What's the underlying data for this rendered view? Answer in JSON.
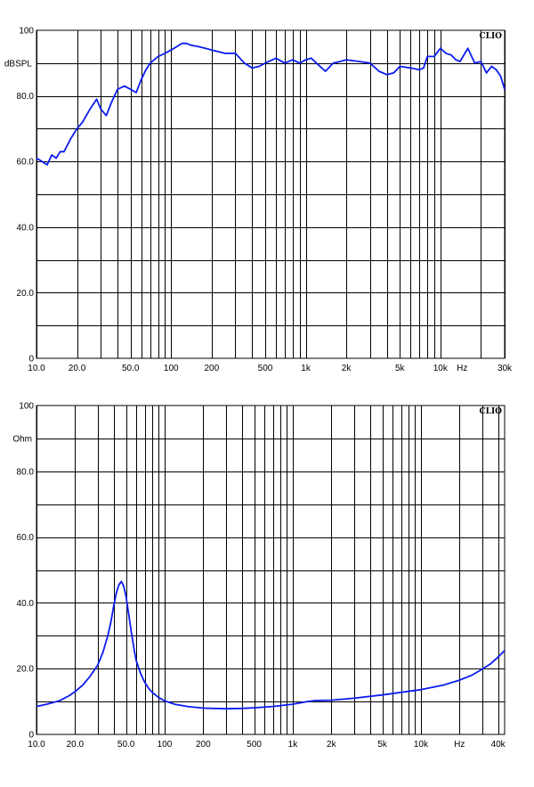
{
  "chart_data": [
    {
      "type": "line",
      "brand": "CLIO",
      "ylabel": "dBSPL",
      "ylim": [
        0,
        100
      ],
      "xlim": [
        10,
        30000
      ],
      "x_scale": "log",
      "grid": true,
      "series_color": "#0a1cf0",
      "y_tick_labels": [
        {
          "value": 0,
          "label": "0"
        },
        {
          "value": 20,
          "label": "20.0"
        },
        {
          "value": 40,
          "label": "40.0"
        },
        {
          "value": 60,
          "label": "60.0"
        },
        {
          "value": 80,
          "label": "80.0"
        },
        {
          "value": 100,
          "label": "100"
        }
      ],
      "x_tick_labels": [
        {
          "value": 10,
          "label": "10.0"
        },
        {
          "value": 20,
          "label": "20.0"
        },
        {
          "value": 50,
          "label": "50.0"
        },
        {
          "value": 100,
          "label": "100"
        },
        {
          "value": 200,
          "label": "200"
        },
        {
          "value": 500,
          "label": "500"
        },
        {
          "value": 1000,
          "label": "1k"
        },
        {
          "value": 2000,
          "label": "2k"
        },
        {
          "value": 5000,
          "label": "5k"
        },
        {
          "value": 10000,
          "label": "10k"
        },
        {
          "value": 14500,
          "label": "Hz"
        },
        {
          "value": 30000,
          "label": "30k"
        }
      ],
      "series": [
        {
          "x": [
            10,
            11,
            12,
            13,
            14,
            15,
            16,
            18,
            20,
            22,
            25,
            28,
            30,
            33,
            36,
            40,
            45,
            50,
            55,
            60,
            65,
            70,
            80,
            90,
            100,
            110,
            120,
            130,
            140,
            160,
            180,
            200,
            250,
            300,
            350,
            400,
            450,
            500,
            600,
            700,
            800,
            900,
            1000,
            1100,
            1200,
            1400,
            1600,
            1800,
            2000,
            2500,
            3000,
            3500,
            4000,
            4500,
            5000,
            6000,
            7000,
            7500,
            8000,
            9000,
            10000,
            11000,
            12000,
            13000,
            14000,
            16000,
            18000,
            20000,
            22000,
            24000,
            26000,
            28000,
            30000
          ],
          "y": [
            61,
            60,
            59,
            62,
            61,
            63,
            63,
            67,
            70,
            72,
            76,
            79,
            76,
            74,
            78,
            82,
            83,
            82,
            81,
            85,
            88,
            90,
            92,
            93,
            94,
            95,
            96,
            96,
            95.5,
            95,
            94.5,
            94,
            93,
            93,
            90,
            88.5,
            89,
            90,
            91.5,
            90,
            91,
            90,
            91,
            91.5,
            90,
            87.5,
            90,
            90.5,
            91,
            90.5,
            90,
            87.5,
            86.5,
            87,
            89,
            88.5,
            88,
            88.5,
            92,
            92,
            94.5,
            93,
            92.5,
            91,
            90.5,
            94.5,
            90,
            90.5,
            87,
            89,
            88,
            86,
            82
          ]
        }
      ]
    },
    {
      "type": "line",
      "brand": "CLIO",
      "ylabel": "Ohm",
      "ylim": [
        0,
        100
      ],
      "xlim": [
        10,
        45000
      ],
      "x_scale": "log",
      "grid": true,
      "series_color": "#0a1cf0",
      "y_tick_labels": [
        {
          "value": 0,
          "label": "0"
        },
        {
          "value": 20,
          "label": "20.0"
        },
        {
          "value": 40,
          "label": "40.0"
        },
        {
          "value": 60,
          "label": "60.0"
        },
        {
          "value": 80,
          "label": "80.0"
        },
        {
          "value": 100,
          "label": "100"
        }
      ],
      "x_tick_labels": [
        {
          "value": 10,
          "label": "10.0"
        },
        {
          "value": 20,
          "label": "20.0"
        },
        {
          "value": 50,
          "label": "50.0"
        },
        {
          "value": 100,
          "label": "100"
        },
        {
          "value": 200,
          "label": "200"
        },
        {
          "value": 500,
          "label": "500"
        },
        {
          "value": 1000,
          "label": "1k"
        },
        {
          "value": 2000,
          "label": "2k"
        },
        {
          "value": 5000,
          "label": "5k"
        },
        {
          "value": 10000,
          "label": "10k"
        },
        {
          "value": 20000,
          "label": "Hz"
        },
        {
          "value": 40000,
          "label": "40k"
        }
      ],
      "series": [
        {
          "x": [
            10,
            12,
            15,
            18,
            20,
            23,
            26,
            30,
            33,
            36,
            38,
            40,
            42,
            44,
            46,
            48,
            50,
            52,
            55,
            58,
            60,
            65,
            70,
            75,
            80,
            90,
            100,
            120,
            150,
            200,
            300,
            400,
            500,
            700,
            1000,
            1300,
            1500,
            2000,
            3000,
            5000,
            7000,
            10000,
            15000,
            20000,
            25000,
            30000,
            35000,
            40000,
            45000
          ],
          "y": [
            8.5,
            9.2,
            10.2,
            11.8,
            13,
            15,
            17.5,
            21,
            25,
            30,
            34,
            39,
            43,
            45.5,
            46.5,
            45,
            42,
            37.5,
            31,
            25.5,
            22.5,
            18.5,
            15.8,
            14,
            12.8,
            11.2,
            10.2,
            9.2,
            8.5,
            8,
            7.8,
            7.9,
            8.1,
            8.5,
            9.2,
            10,
            10.3,
            10.4,
            11,
            12,
            12.8,
            13.6,
            15,
            16.5,
            18,
            19.8,
            21.5,
            23.5,
            25.5
          ]
        }
      ]
    }
  ]
}
